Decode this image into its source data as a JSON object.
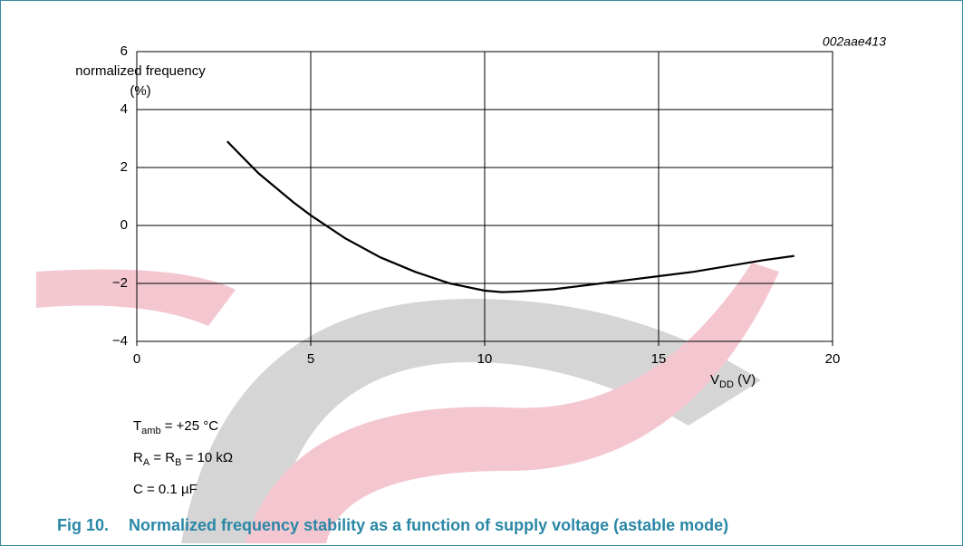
{
  "chart_data": {
    "type": "line",
    "figure_number": "Fig 10.",
    "title": "Normalized frequency stability as a function of supply voltage (astable mode)",
    "code": "002aae413",
    "y_label": [
      "normalized frequency",
      "(%)"
    ],
    "x_label": [
      "V",
      "DD",
      " (V)"
    ],
    "notes": [
      [
        "T",
        "amb",
        " = +25 °C"
      ],
      [
        "R",
        "A",
        " = R",
        "B",
        " = 10 kΩ"
      ],
      [
        "C = 0.1 µF"
      ]
    ],
    "x": [
      2.6,
      3.5,
      4.5,
      5,
      6,
      7,
      8,
      9,
      10,
      10.5,
      11,
      12,
      13,
      14,
      15,
      16,
      17,
      18,
      18.9
    ],
    "series": [
      {
        "color": "#000000",
        "values": [
          2.9,
          1.8,
          0.8,
          0.35,
          -0.45,
          -1.1,
          -1.6,
          -2.0,
          -2.25,
          -2.3,
          -2.28,
          -2.2,
          -2.05,
          -1.9,
          -1.75,
          -1.6,
          -1.4,
          -1.2,
          -1.05
        ]
      }
    ],
    "xlim": [
      0,
      20
    ],
    "xticks": [
      0,
      5,
      10,
      15,
      20
    ],
    "ylim": [
      -4,
      6
    ],
    "yticks": [
      {
        "value": -4,
        "label": "−4"
      },
      {
        "value": -2,
        "label": "−2"
      },
      0,
      2,
      4,
      6
    ],
    "grid": true
  }
}
